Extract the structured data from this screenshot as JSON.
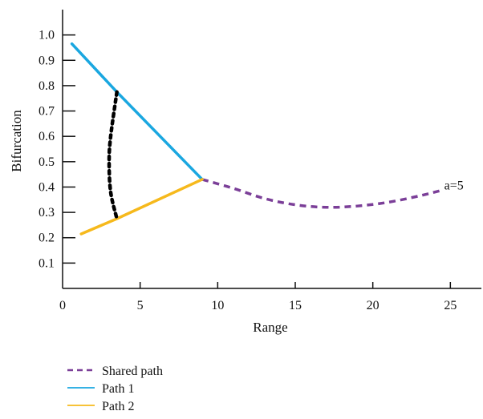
{
  "chart_data": {
    "type": "line",
    "xlabel": "Range",
    "ylabel": "Bifurcation",
    "xlim": [
      0,
      27
    ],
    "ylim": [
      0,
      1.1
    ],
    "xticks": [
      0,
      5,
      10,
      15,
      20,
      25
    ],
    "yticks": [
      0.1,
      0.2,
      0.3,
      0.4,
      0.5,
      0.6,
      0.7,
      0.8,
      0.9,
      1.0
    ],
    "xtick_labels": [
      "0",
      "5",
      "10",
      "15",
      "20",
      "25"
    ],
    "ytick_labels": [
      "0.1",
      "0.2",
      "0.3",
      "0.4",
      "0.5",
      "0.6",
      "0.7",
      "0.8",
      "0.9",
      "1.0"
    ],
    "annotation": {
      "text": "a=5",
      "x": 24.6,
      "y": 0.39
    },
    "series": [
      {
        "name": "Shared path",
        "color": "#7b3f98",
        "style": "dashed",
        "points": [
          [
            9.0,
            0.43
          ],
          [
            11,
            0.395
          ],
          [
            13,
            0.355
          ],
          [
            15,
            0.33
          ],
          [
            17,
            0.32
          ],
          [
            19,
            0.325
          ],
          [
            21,
            0.34
          ],
          [
            23,
            0.365
          ],
          [
            24.3,
            0.385
          ]
        ]
      },
      {
        "name": "Path 1",
        "color": "#1aa7e0",
        "style": "solid",
        "points": [
          [
            0.6,
            0.965
          ],
          [
            3.5,
            0.775
          ],
          [
            9.0,
            0.43
          ]
        ]
      },
      {
        "name": "Path 2",
        "color": "#f6b91c",
        "style": "solid",
        "points": [
          [
            1.2,
            0.215
          ],
          [
            3.5,
            0.275
          ],
          [
            9.0,
            0.43
          ]
        ]
      },
      {
        "color": "#000000",
        "style": "dotted",
        "points": [
          [
            3.5,
            0.775
          ],
          [
            3.1,
            0.6
          ],
          [
            3.0,
            0.5
          ],
          [
            3.1,
            0.38
          ],
          [
            3.5,
            0.275
          ]
        ]
      }
    ],
    "legend": {
      "position": "bottom-left",
      "entries": [
        {
          "label": "Shared path",
          "color": "#7b3f98",
          "style": "dashed"
        },
        {
          "label": "Path 1",
          "color": "#1aa7e0",
          "style": "solid"
        },
        {
          "label": "Path 2",
          "color": "#f6b91c",
          "style": "solid"
        }
      ]
    }
  }
}
